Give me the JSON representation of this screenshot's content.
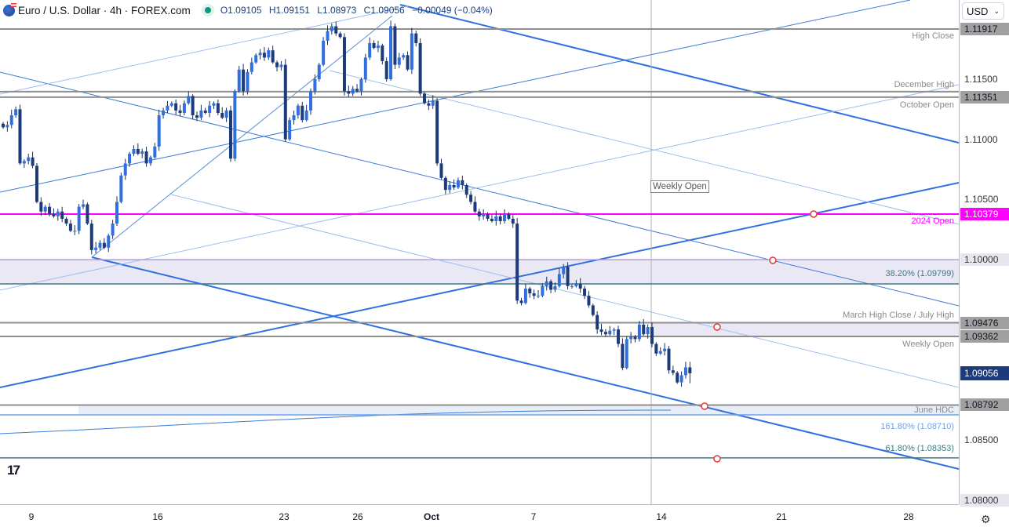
{
  "header": {
    "symbol_title": "Euro / U.S. Dollar · 4h · FOREX.com",
    "open": "O1.09105",
    "high": "H1.09151",
    "low": "L1.08973",
    "close": "C1.09056",
    "change": "−0.00049 (−0.04%)",
    "market_status_color": "#089981"
  },
  "currency_selector": {
    "value": "USD"
  },
  "colors": {
    "up": "#2f6fe0",
    "down": "#1d3b7a",
    "magenta": "#ff00ff",
    "teal": "#3d7a85",
    "gray_level": "#8f8f8f",
    "last_price": "#1d3b7a"
  },
  "price_axis": {
    "plain_ticks": [
      "1.11500",
      "1.11000",
      "1.10500",
      "1.08500"
    ],
    "boxed_ticks": [
      "1.10000",
      "1.08000"
    ],
    "last_price": "1.09056"
  },
  "time_axis": {
    "labels": [
      "9",
      "16",
      "23",
      "26",
      "Oct",
      "7",
      "14",
      "21",
      "28"
    ]
  },
  "levels": [
    {
      "price": 1.11917,
      "axis_label": "1.11917",
      "label": "High Close",
      "color": "#8f8f8f"
    },
    {
      "price": 1.11396,
      "axis_label": "",
      "label": "December High",
      "color": "#8f8f8f"
    },
    {
      "price": 1.11351,
      "axis_label": "1.11351",
      "label": "October Open",
      "color": "#8f8f8f"
    },
    {
      "price": 1.10379,
      "axis_label": "1.10379",
      "label": "2024 Open",
      "color": "#ff00ff"
    },
    {
      "price": 1.1,
      "axis_label": "",
      "label": "",
      "color": "#b39ddb"
    },
    {
      "price": 1.09799,
      "axis_label": "",
      "label": "38.20% (1.09799)",
      "color": "#3d7a85"
    },
    {
      "price": 1.09476,
      "axis_label": "1.09476",
      "label": "March High Close / July High",
      "color": "#8f8f8f"
    },
    {
      "price": 1.09362,
      "axis_label": "1.09362",
      "label": "Weekly Open",
      "color": "#8f8f8f"
    },
    {
      "price": 1.08792,
      "axis_label": "1.08792",
      "label": "June HDC",
      "color": "#8f8f8f"
    },
    {
      "price": 1.0871,
      "axis_label": "",
      "label": "161.80% (1.08710)",
      "color": "#6fa0ea"
    },
    {
      "price": 1.08353,
      "axis_label": "",
      "label": "61.80% (1.08353)",
      "color": "#3d7a85"
    }
  ],
  "weekly_open_marker": {
    "label": "Weekly Open"
  },
  "chart_data": {
    "type": "candlestick",
    "title": "Euro / U.S. Dollar · 4h · FOREX.com",
    "interval": "4h",
    "ylim": [
      1.078,
      1.1215
    ],
    "y_scale": "linear",
    "grid": false,
    "x_ticks": [
      "9",
      "16",
      "23",
      "26",
      "Oct",
      "7",
      "14",
      "21",
      "28"
    ],
    "closes": [
      1.111,
      1.1112,
      1.112,
      1.1125,
      1.108,
      1.1082,
      1.1085,
      1.1078,
      1.1048,
      1.104,
      1.1044,
      1.1038,
      1.1036,
      1.104,
      1.1034,
      1.103,
      1.1024,
      1.1024,
      1.1044,
      1.1046,
      1.103,
      1.1008,
      1.101,
      1.1014,
      1.101,
      1.102,
      1.103,
      1.1048,
      1.107,
      1.108,
      1.1088,
      1.1092,
      1.1088,
      1.109,
      1.108,
      1.1085,
      1.1094,
      1.112,
      1.1124,
      1.1128,
      1.113,
      1.1124,
      1.1122,
      1.113,
      1.1136,
      1.112,
      1.1118,
      1.1124,
      1.1122,
      1.1128,
      1.113,
      1.1122,
      1.1118,
      1.1124,
      1.1084,
      1.114,
      1.1158,
      1.114,
      1.1156,
      1.1164,
      1.117,
      1.1172,
      1.1168,
      1.1174,
      1.1164,
      1.116,
      1.1162,
      1.11,
      1.1116,
      1.112,
      1.1128,
      1.1116,
      1.1124,
      1.114,
      1.115,
      1.1162,
      1.1182,
      1.119,
      1.1194,
      1.1188,
      1.1185,
      1.114,
      1.1138,
      1.1142,
      1.114,
      1.115,
      1.1168,
      1.118,
      1.1176,
      1.1178,
      1.1165,
      1.115,
      1.1194,
      1.1162,
      1.1168,
      1.117,
      1.1158,
      1.1188,
      1.118,
      1.1138,
      1.113,
      1.1128,
      1.1132,
      1.108,
      1.1068,
      1.1058,
      1.1062,
      1.106,
      1.1066,
      1.1062,
      1.1054,
      1.1048,
      1.104,
      1.1036,
      1.1038,
      1.1034,
      1.1032,
      1.1036,
      1.1032,
      1.1038,
      1.1034,
      1.103,
      1.0966,
      1.0964,
      1.0976,
      1.0972,
      1.097,
      1.097,
      1.0978,
      1.0982,
      1.0975,
      1.0978,
      1.0988,
      1.0994,
      1.0978,
      1.0978,
      1.098,
      1.0976,
      1.097,
      1.0962,
      1.0954,
      1.0942,
      1.094,
      1.0938,
      1.0941,
      1.0942,
      1.093,
      1.091,
      1.0934,
      1.0936,
      1.0934,
      1.0946,
      1.0938,
      1.0944,
      1.093,
      1.0922,
      1.0924,
      1.0926,
      1.0908,
      1.0906,
      1.0898,
      1.0904,
      1.09105
    ],
    "last_bar": {
      "open": 1.09105,
      "high": 1.09151,
      "low": 1.08973,
      "close": 1.09056
    }
  }
}
